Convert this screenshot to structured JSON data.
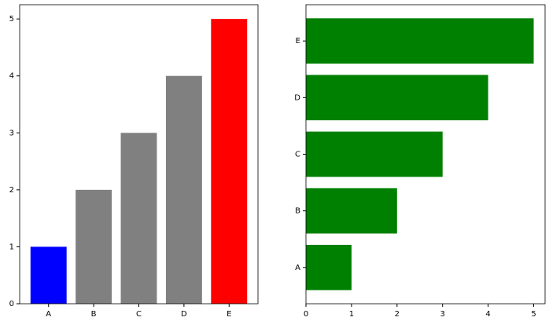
{
  "chart_data": [
    {
      "type": "bar",
      "categories": [
        "A",
        "B",
        "C",
        "D",
        "E"
      ],
      "values": [
        1,
        2,
        3,
        4,
        5
      ],
      "colors": [
        "blue",
        "gray",
        "gray",
        "gray",
        "red"
      ],
      "ylim": [
        0,
        5.25
      ],
      "yticks": [
        0,
        1,
        2,
        3,
        4,
        5
      ]
    },
    {
      "type": "barh",
      "categories": [
        "A",
        "B",
        "C",
        "D",
        "E"
      ],
      "values": [
        1,
        2,
        3,
        4,
        5
      ],
      "color": "green",
      "xlim": [
        0,
        5.25
      ],
      "xticks": [
        0,
        1,
        2,
        3,
        4,
        5
      ]
    }
  ]
}
